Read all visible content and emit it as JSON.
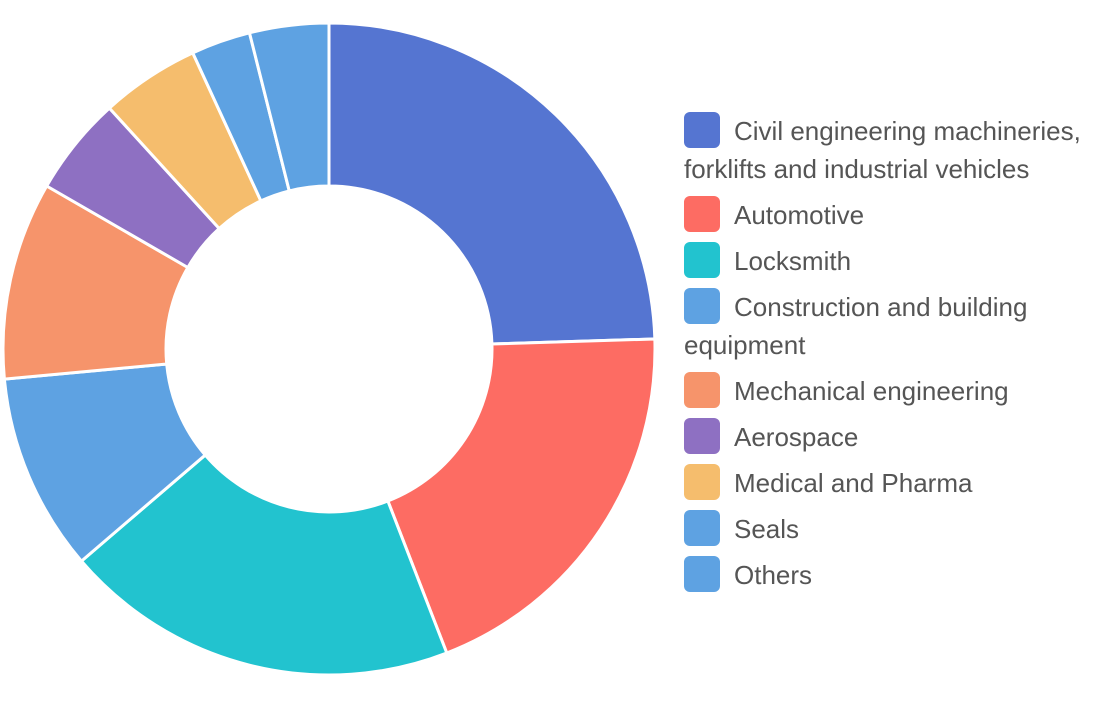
{
  "chart_data": {
    "type": "pie",
    "variant": "doughnut",
    "legend_position": "right",
    "categories": [
      "Civil engineering machineries, forklifts and industrial vehicles",
      "Automotive",
      "Locksmith",
      "Construction and building equipment",
      "Mechanical engineering",
      "Aerospace",
      "Medical and Pharma",
      "Seals",
      "Others"
    ],
    "values": [
      25,
      20,
      20,
      10,
      10,
      5,
      5,
      3,
      4
    ],
    "colors": [
      "#5575d1",
      "#fd6c63",
      "#22c3cf",
      "#5ea2e2",
      "#f6946b",
      "#8e70c2",
      "#f5bd6d",
      "#5ea2e2",
      "#5ea2e2"
    ]
  }
}
